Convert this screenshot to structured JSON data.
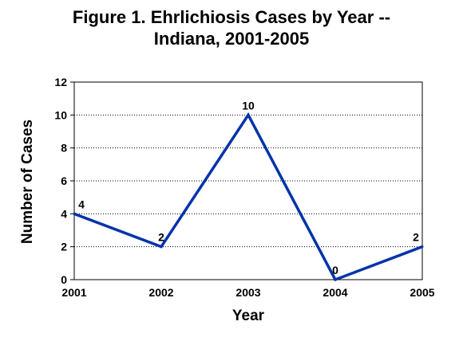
{
  "chart_data": {
    "type": "line",
    "title_lines": [
      "Figure 1.  Ehrlichiosis Cases by Year --",
      "Indiana, 2001-2005"
    ],
    "xlabel": "Year",
    "ylabel": "Number of Cases",
    "categories": [
      "2001",
      "2002",
      "2003",
      "2004",
      "2005"
    ],
    "series": [
      {
        "values": [
          4,
          2,
          10,
          0,
          2
        ],
        "color": "#0033aa"
      }
    ],
    "data_labels": [
      "4",
      "2",
      "10",
      "0",
      "2"
    ],
    "ylim": [
      0,
      12
    ],
    "yticks": [
      "0",
      "2",
      "4",
      "6",
      "8",
      "10",
      "12"
    ],
    "grid": true,
    "legend": "none"
  }
}
